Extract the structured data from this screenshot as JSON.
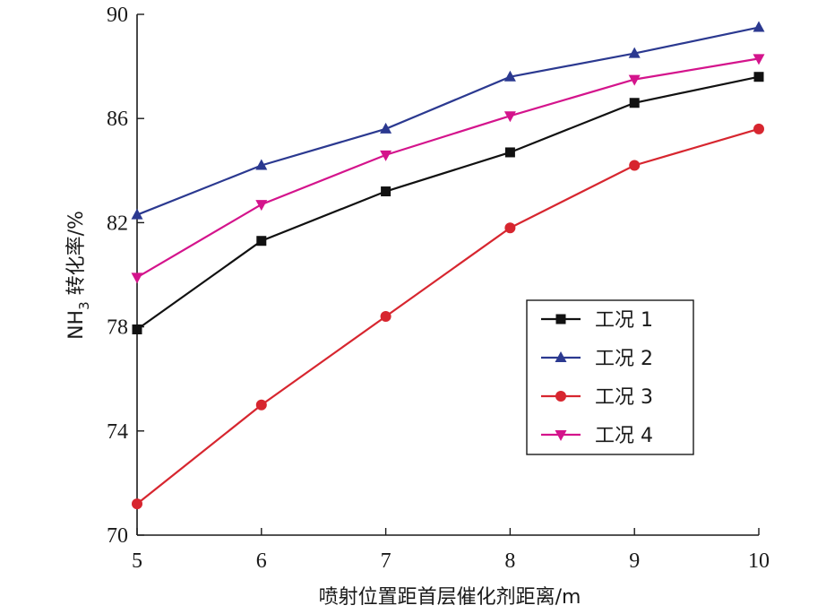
{
  "chart_data": {
    "type": "line",
    "x": [
      5,
      6,
      7,
      8,
      9,
      10
    ],
    "xlabel": "喷射位置距首层催化剂距离/m",
    "ylabel_main": "NH",
    "ylabel_sub": "3",
    "ylabel_rest": " 转化率/%",
    "xlim": [
      5,
      10
    ],
    "ylim": [
      70,
      90
    ],
    "xticks": [
      5,
      6,
      7,
      8,
      9,
      10
    ],
    "yticks": [
      70,
      74,
      78,
      82,
      86,
      90
    ],
    "grid": false,
    "legend_position": "center-right",
    "series": [
      {
        "name": "工况 1",
        "color": "#111111",
        "marker": "square",
        "values": [
          77.9,
          81.3,
          83.2,
          84.7,
          86.6,
          87.6
        ]
      },
      {
        "name": "工况 2",
        "color": "#2b3990",
        "marker": "triangle-up",
        "values": [
          82.3,
          84.2,
          85.6,
          87.6,
          88.5,
          89.5
        ]
      },
      {
        "name": "工况 3",
        "color": "#d7262f",
        "marker": "circle",
        "values": [
          71.2,
          75.0,
          78.4,
          81.8,
          84.2,
          85.6
        ]
      },
      {
        "name": "工况 4",
        "color": "#d4148c",
        "marker": "triangle-down",
        "values": [
          79.9,
          82.7,
          84.6,
          86.1,
          87.5,
          88.3
        ]
      }
    ]
  }
}
